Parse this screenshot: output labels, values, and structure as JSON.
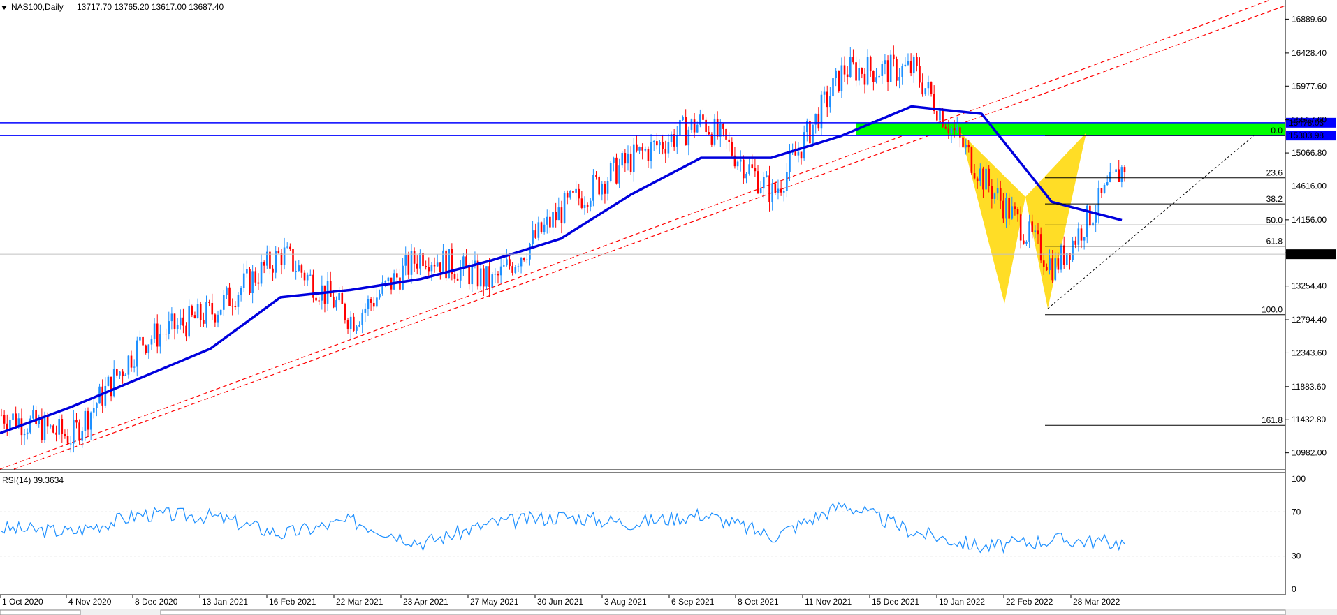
{
  "header": {
    "symbol_timeframe": "NAS100,Daily",
    "ohlc": "13717.70 13765.20 13617.00 13687.40"
  },
  "rsi_header": "RSI(14) 39.3634",
  "colors": {
    "bull": "#1e90ff",
    "bear": "#ff0000",
    "ma": "#0000dd",
    "hline": "#0000ff",
    "trend": "#ff0000",
    "zone": "#00ff00",
    "pattern": "#ffd700",
    "rsi": "#1e90ff"
  },
  "chart_data": [
    {
      "type": "candlestick",
      "symbol": "NAS100",
      "timeframe": "Daily",
      "ylim": [
        10760,
        17150
      ],
      "y_ticks": [
        "16889.60",
        "16428.40",
        "15977.60",
        "15517.60",
        "15066.80",
        "14616.00",
        "14156.00",
        "13705.20",
        "13254.40",
        "12794.40",
        "12343.60",
        "11883.60",
        "11432.80",
        "10982.00"
      ],
      "x_labels": [
        "1 Oct 2020",
        "4 Nov 2020",
        "8 Dec 2020",
        "13 Jan 2021",
        "16 Feb 2021",
        "22 Mar 2021",
        "23 Apr 2021",
        "27 May 2021",
        "30 Jun 2021",
        "3 Aug 2021",
        "6 Sep 2021",
        "8 Oct 2021",
        "11 Nov 2021",
        "15 Dec 2021",
        "19 Jan 2022",
        "22 Feb 2022",
        "28 Mar 2022"
      ],
      "series": [
        {
          "x": [
            "1 Oct 2020",
            "4 Nov 2020",
            "8 Dec 2020",
            "13 Jan 2021",
            "16 Feb 2021",
            "22 Mar 2021",
            "23 Apr 2021",
            "27 May 2021",
            "30 Jun 2021",
            "3 Aug 2021",
            "6 Sep 2021",
            "8 Oct 2021",
            "11 Nov 2021",
            "15 Dec 2021",
            "19 Jan 2022",
            "22 Feb 2022",
            "28 Mar 2022"
          ],
          "close": [
            11500,
            11200,
            12500,
            12900,
            13700,
            12800,
            13700,
            13300,
            14300,
            15000,
            15500,
            14500,
            16200,
            16200,
            14700,
            13500,
            14900
          ]
        }
      ],
      "moving_average": {
        "x": [
          "1 Oct 2020",
          "4 Nov 2020",
          "8 Dec 2020",
          "13 Jan 2021",
          "16 Feb 2021",
          "22 Mar 2021",
          "23 Apr 2021",
          "27 May 2021",
          "30 Jun 2021",
          "3 Aug 2021",
          "6 Sep 2021",
          "8 Oct 2021",
          "11 Nov 2021",
          "15 Dec 2021",
          "19 Jan 2022",
          "22 Feb 2022",
          "28 Mar 2022"
        ],
        "values": [
          11250,
          11600,
          12000,
          12400,
          13100,
          13200,
          13350,
          13600,
          13900,
          14500,
          15000,
          15000,
          15300,
          15700,
          15600,
          14400,
          14150
        ]
      },
      "horizontal_levels": [
        {
          "value": 15478.03,
          "label": "15478.03"
        },
        {
          "value": 15303.98,
          "label": "15303.98"
        },
        {
          "value": 13687.4,
          "label": "13687.40"
        }
      ],
      "fibonacci": [
        {
          "level": "0.0",
          "value": 15304
        },
        {
          "level": "23.6",
          "value": 14728
        },
        {
          "level": "38.2",
          "value": 14372
        },
        {
          "level": "50.0",
          "value": 14084
        },
        {
          "level": "61.8",
          "value": 13796
        },
        {
          "level": "100.0",
          "value": 12864
        },
        {
          "level": "161.8",
          "value": 11357
        }
      ]
    },
    {
      "type": "line",
      "name": "RSI(14)",
      "current": 39.3634,
      "ylim": [
        0,
        100
      ],
      "y_ticks": [
        "100",
        "70",
        "30",
        "0"
      ],
      "levels": [
        70,
        30
      ],
      "x": [
        "1 Oct 2020",
        "4 Nov 2020",
        "8 Dec 2020",
        "13 Jan 2021",
        "16 Feb 2021",
        "22 Mar 2021",
        "23 Apr 2021",
        "27 May 2021",
        "30 Jun 2021",
        "3 Aug 2021",
        "6 Sep 2021",
        "8 Oct 2021",
        "11 Nov 2021",
        "15 Dec 2021",
        "19 Jan 2022",
        "22 Feb 2022",
        "28 Mar 2022"
      ],
      "values": [
        55,
        52,
        68,
        66,
        50,
        62,
        42,
        60,
        66,
        60,
        68,
        48,
        77,
        52,
        38,
        45,
        42
      ]
    }
  ]
}
